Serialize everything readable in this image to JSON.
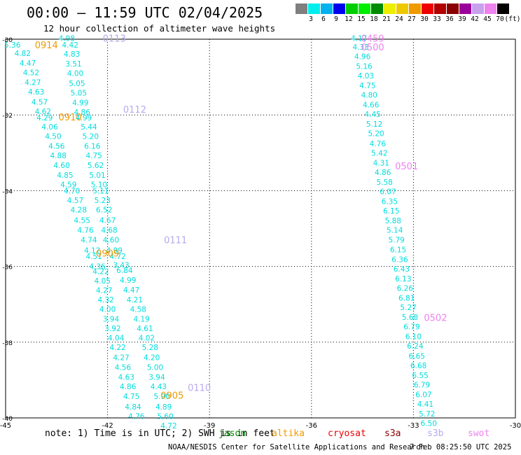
{
  "header": {
    "title": "00:00 – 11:59 UTC 02/04/2025",
    "subtitle": "12 hour collection of altimeter wave heights"
  },
  "colorbar": {
    "colors": [
      "#7f7f7f",
      "#00eeee",
      "#00b2ee",
      "#0000ee",
      "#00cd00",
      "#00ee00",
      "#008b00",
      "#eeee00",
      "#eec900",
      "#ee9a00",
      "#ee0000",
      "#b20000",
      "#8b0000",
      "#9a009a",
      "#c8a0ee",
      "#ee82ee",
      "#000000"
    ],
    "labels": [
      "3",
      "6",
      "9",
      "12",
      "15",
      "18",
      "21",
      "24",
      "27",
      "30",
      "33",
      "36",
      "39",
      "42",
      "45",
      "70",
      "(ft)"
    ]
  },
  "map": {
    "lon_ticks": [
      "-45",
      "-42",
      "-39",
      "-36",
      "-33",
      "-30"
    ],
    "lat_ticks": [
      "-30",
      "-32",
      "-34",
      "-36",
      "-38",
      "-40"
    ],
    "lon_range": [
      -45,
      -30
    ],
    "lat_range": [
      -30,
      -40
    ],
    "track_colors": {
      "jason": "#00dddd",
      "altika": "#ee9a00",
      "s3b": "#b8a8ee",
      "swot": "#ee82ee"
    },
    "time_labels": [
      {
        "text": "0113",
        "lon": -41.8,
        "lat": -29.97,
        "sat": "s3b"
      },
      {
        "text": "0914",
        "lon": -43.8,
        "lat": -30.15,
        "sat": "altika"
      },
      {
        "text": "0112",
        "lon": -41.2,
        "lat": -31.85,
        "sat": "s3b"
      },
      {
        "text": "0910",
        "lon": -43.1,
        "lat": -32.05,
        "sat": "altika"
      },
      {
        "text": "0111",
        "lon": -40.0,
        "lat": -35.3,
        "sat": "s3b"
      },
      {
        "text": "0909",
        "lon": -42.0,
        "lat": -35.65,
        "sat": "altika"
      },
      {
        "text": "0110",
        "lon": -39.3,
        "lat": -39.2,
        "sat": "s3b"
      },
      {
        "text": "0905",
        "lon": -40.1,
        "lat": -39.4,
        "sat": "altika"
      },
      {
        "text": "0459",
        "lon": -34.2,
        "lat": -29.97,
        "sat": "swot"
      },
      {
        "text": "0500",
        "lon": -34.2,
        "lat": -30.2,
        "sat": "swot"
      },
      {
        "text": "0501",
        "lon": -33.2,
        "lat": -33.35,
        "sat": "swot"
      },
      {
        "text": "0502",
        "lon": -32.35,
        "lat": -37.35,
        "sat": "swot"
      }
    ],
    "tracks": [
      {
        "sat": "jason",
        "points": [
          [
            "5.36",
            -44.8,
            -30.15
          ],
          [
            "4.82",
            -44.5,
            -30.37
          ],
          [
            "4.47",
            -44.35,
            -30.63
          ],
          [
            "4.52",
            -44.25,
            -30.88
          ],
          [
            "4.27",
            -44.2,
            -31.14
          ],
          [
            "4.63",
            -44.1,
            -31.39
          ],
          [
            "4.57",
            -44.0,
            -31.65
          ],
          [
            "4.62",
            -43.9,
            -31.9
          ],
          [
            "4.29",
            -43.85,
            -32.07
          ]
        ]
      },
      {
        "sat": "jason",
        "points": [
          [
            "4.06",
            -43.7,
            -32.31
          ],
          [
            "4.50",
            -43.6,
            -32.56
          ],
          [
            "4.56",
            -43.5,
            -32.82
          ],
          [
            "4.88",
            -43.45,
            -33.07
          ],
          [
            "4.60",
            -43.35,
            -33.33
          ],
          [
            "4.85",
            -43.25,
            -33.59
          ],
          [
            "4.59",
            -43.15,
            -33.84
          ],
          [
            "4.70",
            -43.05,
            -34.0
          ],
          [
            "4.57",
            -42.95,
            -34.25
          ],
          [
            "4.28",
            -42.85,
            -34.5
          ],
          [
            "4.55",
            -42.75,
            -34.78
          ],
          [
            "4.76",
            -42.65,
            -35.04
          ],
          [
            "4.74",
            -42.55,
            -35.3
          ],
          [
            "4.12",
            -42.45,
            -35.57
          ],
          [
            "4.51",
            -42.4,
            -35.73
          ]
        ]
      },
      {
        "sat": "jason",
        "points": [
          [
            "4.36",
            -42.3,
            -36.0
          ],
          [
            "4.22",
            -42.2,
            -36.13
          ],
          [
            "4.05",
            -42.15,
            -36.38
          ],
          [
            "4.27",
            -42.1,
            -36.63
          ],
          [
            "4.32",
            -42.05,
            -36.88
          ],
          [
            "4.00",
            -42.0,
            -37.13
          ],
          [
            "3.94",
            -41.9,
            -37.38
          ],
          [
            "3.92",
            -41.85,
            -37.63
          ],
          [
            "4.04",
            -41.75,
            -37.88
          ],
          [
            "4.22",
            -41.7,
            -38.13
          ],
          [
            "4.27",
            -41.6,
            -38.4
          ],
          [
            "4.56",
            -41.55,
            -38.66
          ],
          [
            "4.63",
            -41.45,
            -38.92
          ],
          [
            "4.86",
            -41.4,
            -39.17
          ],
          [
            "4.75",
            -41.3,
            -39.43
          ],
          [
            "4.84",
            -41.25,
            -39.7
          ],
          [
            "4.76",
            -41.15,
            -39.95
          ]
        ]
      },
      {
        "sat": "jason",
        "points": [
          [
            "4.98",
            -43.2,
            -29.97
          ],
          [
            "4.42",
            -43.1,
            -30.15
          ],
          [
            "4.83",
            -43.05,
            -30.39
          ],
          [
            "3.51",
            -43.0,
            -30.65
          ],
          [
            "4.00",
            -42.95,
            -30.9
          ],
          [
            "5.05",
            -42.9,
            -31.16
          ],
          [
            "5.05",
            -42.85,
            -31.41
          ],
          [
            "4.99",
            -42.8,
            -31.67
          ],
          [
            "4.86",
            -42.75,
            -31.92
          ],
          [
            "4.99",
            -42.7,
            -32.07
          ]
        ]
      },
      {
        "sat": "jason",
        "points": [
          [
            "5.44",
            -42.55,
            -32.31
          ],
          [
            "5.20",
            -42.5,
            -32.56
          ],
          [
            "6.16",
            -42.45,
            -32.82
          ],
          [
            "4.75",
            -42.4,
            -33.07
          ],
          [
            "5.62",
            -42.35,
            -33.33
          ],
          [
            "5.01",
            -42.3,
            -33.59
          ],
          [
            "5.10",
            -42.25,
            -33.84
          ],
          [
            "5.11",
            -42.2,
            -34.0
          ],
          [
            "5.23",
            -42.15,
            -34.25
          ],
          [
            "6.52",
            -42.1,
            -34.5
          ],
          [
            "4.67",
            -42.0,
            -34.78
          ],
          [
            "4.68",
            -41.95,
            -35.04
          ],
          [
            "4.60",
            -41.9,
            -35.3
          ],
          [
            "4.99",
            -41.8,
            -35.57
          ],
          [
            "4.72",
            -41.7,
            -35.73
          ]
        ]
      },
      {
        "sat": "jason",
        "points": [
          [
            "3.43",
            -41.6,
            -35.96
          ],
          [
            "6.84",
            -41.5,
            -36.1
          ],
          [
            "4.99",
            -41.4,
            -36.36
          ],
          [
            "4.47",
            -41.3,
            -36.62
          ],
          [
            "4.21",
            -41.2,
            -36.88
          ],
          [
            "4.58",
            -41.1,
            -37.13
          ],
          [
            "4.19",
            -41.0,
            -37.38
          ],
          [
            "4.61",
            -40.9,
            -37.63
          ],
          [
            "4.02",
            -40.85,
            -37.88
          ],
          [
            "5.28",
            -40.75,
            -38.13
          ],
          [
            "4.20",
            -40.7,
            -38.4
          ],
          [
            "5.00",
            -40.6,
            -38.66
          ],
          [
            "3.94",
            -40.55,
            -38.92
          ],
          [
            "4.43",
            -40.5,
            -39.17
          ],
          [
            "5.90",
            -40.4,
            -39.43
          ],
          [
            "4.89",
            -40.35,
            -39.7
          ],
          [
            "5.60",
            -40.3,
            -39.95
          ],
          [
            "4.72",
            -40.2,
            -40.2
          ]
        ]
      },
      {
        "sat": "jason",
        "points": [
          [
            "4.17",
            -34.6,
            -29.97
          ],
          [
            "4.33",
            -34.55,
            -30.2
          ],
          [
            "4.96",
            -34.5,
            -30.45
          ],
          [
            "5.16",
            -34.45,
            -30.71
          ],
          [
            "4.03",
            -34.4,
            -30.96
          ],
          [
            "4.75",
            -34.35,
            -31.22
          ],
          [
            "4.80",
            -34.3,
            -31.47
          ],
          [
            "4.66",
            -34.25,
            -31.73
          ],
          [
            "4.45",
            -34.2,
            -31.98
          ],
          [
            "5.12",
            -34.15,
            -32.24
          ],
          [
            "5.20",
            -34.1,
            -32.49
          ],
          [
            "4.76",
            -34.05,
            -32.75
          ],
          [
            "5.42",
            -34.0,
            -33.0
          ],
          [
            "4.31",
            -33.95,
            -33.26
          ],
          [
            "4.86",
            -33.9,
            -33.51
          ],
          [
            "5.58",
            -33.85,
            -33.77
          ],
          [
            "6.07",
            -33.75,
            -34.02
          ],
          [
            "6.35",
            -33.7,
            -34.28
          ],
          [
            "6.15",
            -33.65,
            -34.53
          ],
          [
            "5.88",
            -33.6,
            -34.79
          ],
          [
            "5.14",
            -33.55,
            -35.04
          ],
          [
            "5.79",
            -33.5,
            -35.3
          ],
          [
            "6.15",
            -33.45,
            -35.55
          ],
          [
            "6.36",
            -33.4,
            -35.81
          ],
          [
            "6.43",
            -33.35,
            -36.06
          ],
          [
            "6.13",
            -33.3,
            -36.32
          ],
          [
            "6.26",
            -33.25,
            -36.57
          ],
          [
            "6.81",
            -33.2,
            -36.83
          ],
          [
            "5.27",
            -33.15,
            -37.08
          ],
          [
            "5.68",
            -33.1,
            -37.34
          ],
          [
            "6.79",
            -33.05,
            -37.59
          ],
          [
            "6.10",
            -33.0,
            -37.85
          ],
          [
            "6.24",
            -32.95,
            -38.1
          ],
          [
            "6.65",
            -32.9,
            -38.36
          ],
          [
            "6.68",
            -32.85,
            -38.61
          ],
          [
            "6.55",
            -32.8,
            -38.87
          ],
          [
            "6.79",
            -32.75,
            -39.12
          ],
          [
            "6.07",
            -32.7,
            -39.38
          ],
          [
            "4.41",
            -32.65,
            -39.63
          ],
          [
            "5.72",
            -32.6,
            -39.89
          ],
          [
            "6.50",
            -32.55,
            -40.14
          ]
        ]
      }
    ]
  },
  "footer": {
    "note": "note: 1) Time is in UTC; 2) SWH is in feet",
    "satellites": [
      {
        "name": "jason",
        "color": "#008b00"
      },
      {
        "name": "altika",
        "color": "#ee9a00"
      },
      {
        "name": "cryosat",
        "color": "#ee0000"
      },
      {
        "name": "s3a",
        "color": "#8b0000"
      },
      {
        "name": "s3b",
        "color": "#b8a8ee"
      },
      {
        "name": "swot",
        "color": "#ee82ee"
      }
    ],
    "credit": "NOAA/NESDIS Center for Satellite Applications and Research",
    "timestamp": "7 Feb 08:25:50 UTC 2025"
  }
}
